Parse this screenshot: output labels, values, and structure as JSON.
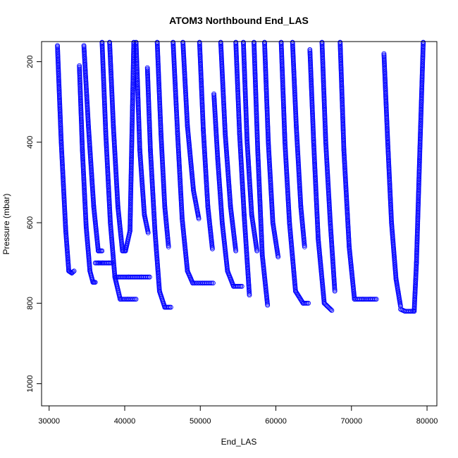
{
  "chart_data": {
    "type": "scatter",
    "title": "ATOM3 Northbound End_LAS",
    "xlabel": "End_LAS",
    "ylabel": "Pressure (mbar)",
    "xlim": [
      29000,
      81300
    ],
    "ylim": [
      1055,
      150
    ],
    "y_reversed": true,
    "grid": false,
    "legend": "none",
    "x_ticks": [
      {
        "value": 30000,
        "label": "30000"
      },
      {
        "value": 40000,
        "label": "40000"
      },
      {
        "value": 50000,
        "label": "50000"
      },
      {
        "value": 60000,
        "label": "60000"
      },
      {
        "value": 70000,
        "label": "70000"
      },
      {
        "value": 80000,
        "label": "80000"
      }
    ],
    "y_ticks": [
      {
        "value": 200,
        "label": "200"
      },
      {
        "value": 400,
        "label": "400"
      },
      {
        "value": 600,
        "label": "600"
      },
      {
        "value": 800,
        "label": "800"
      },
      {
        "value": 1000,
        "label": "1000"
      }
    ],
    "marker": "open-circle",
    "series_color": "#0000ff",
    "profiles": [
      {
        "x": [
          31100,
          31600,
          32200,
          32600,
          33000,
          33300
        ],
        "pressure": [
          160,
          400,
          620,
          720,
          725,
          720
        ]
      },
      {
        "x": [
          34000,
          34400,
          34900,
          35400,
          35800,
          36100
        ],
        "pressure": [
          210,
          420,
          610,
          720,
          748,
          748
        ]
      },
      {
        "x": [
          36100,
          36500,
          37100,
          37900,
          38300
        ],
        "pressure": [
          700,
          700,
          700,
          700,
          700
        ]
      },
      {
        "x": [
          34600,
          35200,
          35900,
          36500,
          37000
        ],
        "pressure": [
          160,
          360,
          560,
          670,
          670
        ]
      },
      {
        "x": [
          37000,
          37500,
          38100,
          38700,
          39400,
          40400,
          41500
        ],
        "pressure": [
          150,
          380,
          600,
          735,
          790,
          790,
          790
        ]
      },
      {
        "x": [
          38000,
          38500,
          39100,
          39700
        ],
        "pressure": [
          150,
          360,
          560,
          670
        ]
      },
      {
        "x": [
          39700,
          40100,
          40700,
          41200
        ],
        "pressure": [
          670,
          670,
          620,
          150
        ]
      },
      {
        "x": [
          38900,
          40500,
          42200,
          43300
        ],
        "pressure": [
          735,
          735,
          735,
          735
        ]
      },
      {
        "x": [
          41500,
          42000,
          42600,
          43100
        ],
        "pressure": [
          150,
          420,
          580,
          625
        ]
      },
      {
        "x": [
          43000,
          43400,
          44000,
          44600,
          45300,
          46100
        ],
        "pressure": [
          215,
          420,
          620,
          770,
          810,
          810
        ]
      },
      {
        "x": [
          44300,
          44800,
          45300,
          45800
        ],
        "pressure": [
          150,
          380,
          560,
          660
        ]
      },
      {
        "x": [
          46400,
          47000,
          47600,
          48300,
          49000,
          50300,
          51700
        ],
        "pressure": [
          150,
          380,
          590,
          720,
          750,
          750,
          750
        ]
      },
      {
        "x": [
          47700,
          48300,
          49100,
          49800
        ],
        "pressure": [
          150,
          360,
          520,
          590
        ]
      },
      {
        "x": [
          49900,
          50400,
          51000,
          51600
        ],
        "pressure": [
          150,
          370,
          560,
          665
        ]
      },
      {
        "x": [
          51800,
          52300,
          52900,
          53600,
          54400,
          55500
        ],
        "pressure": [
          280,
          440,
          600,
          720,
          758,
          758
        ]
      },
      {
        "x": [
          52700,
          53300,
          54000,
          54700
        ],
        "pressure": [
          150,
          380,
          560,
          670
        ]
      },
      {
        "x": [
          54700,
          55200,
          55800,
          56500
        ],
        "pressure": [
          150,
          380,
          580,
          780
        ]
      },
      {
        "x": [
          55700,
          56200,
          56800,
          57500
        ],
        "pressure": [
          150,
          400,
          580,
          670
        ]
      },
      {
        "x": [
          57100,
          57600,
          58200,
          58900
        ],
        "pressure": [
          150,
          420,
          680,
          805
        ]
      },
      {
        "x": [
          58500,
          59000,
          59600,
          60300
        ],
        "pressure": [
          150,
          400,
          600,
          685
        ]
      },
      {
        "x": [
          60700,
          61200,
          61800,
          62600,
          63600,
          64300
        ],
        "pressure": [
          150,
          400,
          600,
          770,
          800,
          800
        ]
      },
      {
        "x": [
          62200,
          62700,
          63300,
          63800
        ],
        "pressure": [
          150,
          360,
          560,
          660
        ]
      },
      {
        "x": [
          64500,
          65000,
          65600,
          66400,
          67400
        ],
        "pressure": [
          170,
          400,
          640,
          800,
          818
        ]
      },
      {
        "x": [
          66100,
          66600,
          67200,
          67800
        ],
        "pressure": [
          150,
          400,
          600,
          770
        ]
      },
      {
        "x": [
          68500,
          69000,
          69700,
          70400
        ],
        "pressure": [
          150,
          420,
          660,
          790
        ]
      },
      {
        "x": [
          70400,
          71500,
          72500,
          73300
        ],
        "pressure": [
          790,
          790,
          790,
          790
        ]
      },
      {
        "x": [
          74300,
          74800,
          75300,
          75900,
          76500
        ],
        "pressure": [
          180,
          400,
          600,
          740,
          808
        ]
      },
      {
        "x": [
          76500,
          77100,
          77800,
          78300
        ],
        "pressure": [
          815,
          820,
          820,
          820
        ]
      },
      {
        "x": [
          78300,
          78600,
          79000,
          79500
        ],
        "pressure": [
          820,
          700,
          450,
          150
        ]
      }
    ]
  }
}
